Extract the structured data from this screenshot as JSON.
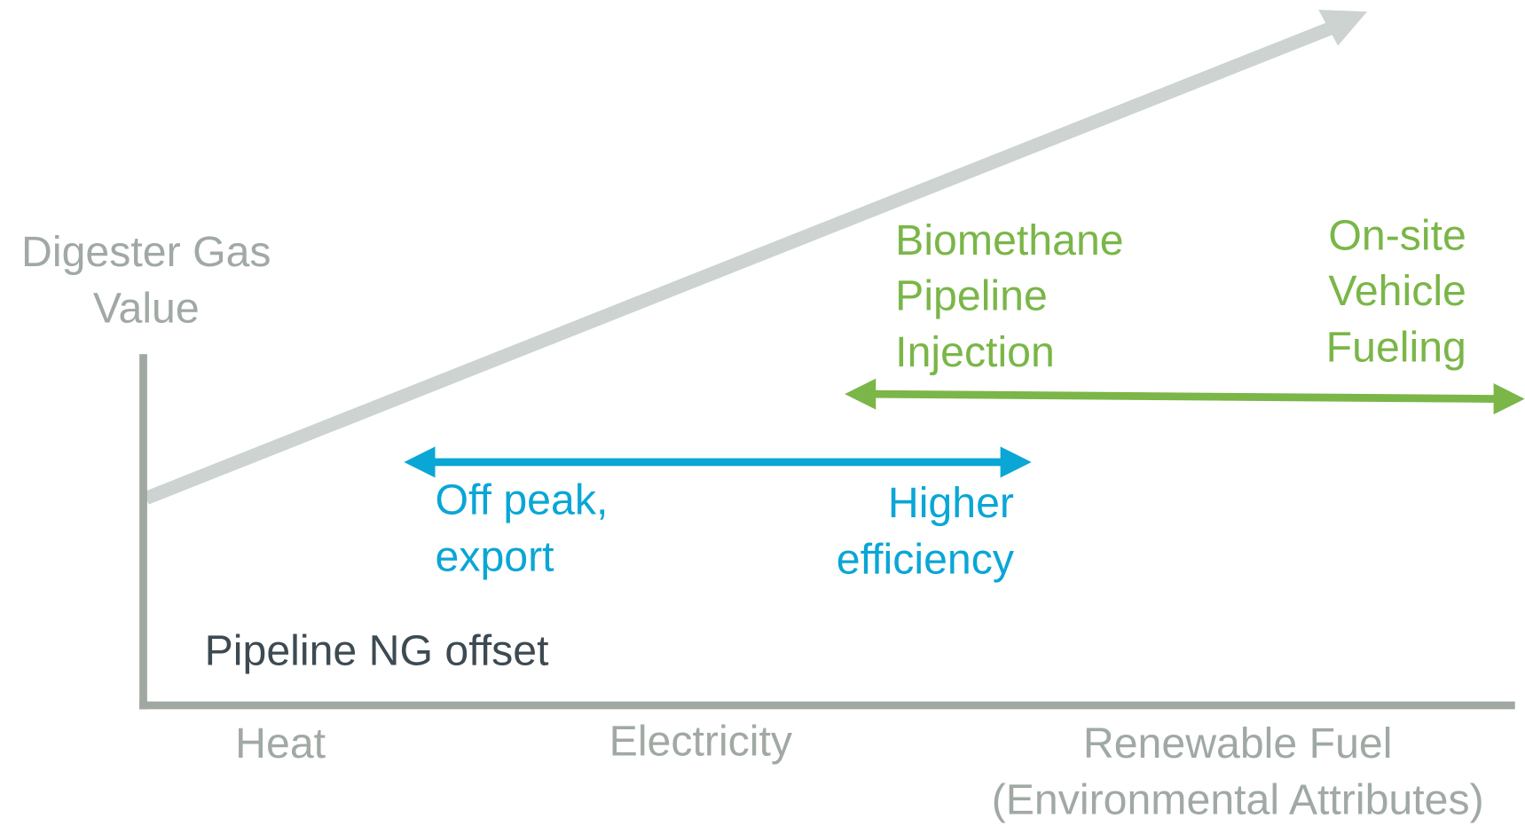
{
  "y_axis_label": [
    "Digester Gas",
    "Value"
  ],
  "x_axis_labels": {
    "heat": "Heat",
    "electricity": "Electricity",
    "renewable_fuel": [
      "Renewable Fuel",
      "(Environmental Attributes)"
    ]
  },
  "baseline_label": "Pipeline NG offset",
  "electricity_range": {
    "left": [
      "Off peak,",
      "export"
    ],
    "right": [
      "Higher",
      "efficiency"
    ]
  },
  "fuel_range": {
    "left": [
      "Biomethane",
      "Pipeline",
      "Injection"
    ],
    "right": [
      "On-site",
      "Vehicle",
      "Fueling"
    ]
  }
}
